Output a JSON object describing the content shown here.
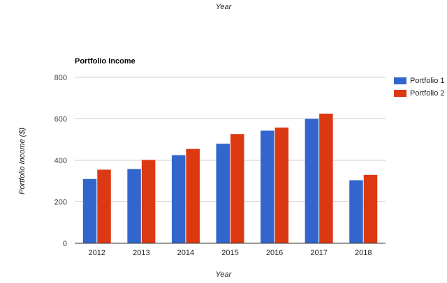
{
  "header": {
    "top_label": "Year"
  },
  "chart_data": {
    "type": "bar",
    "title": "Portfolio Income",
    "xlabel": "Year",
    "ylabel": "Portfolio Income ($)",
    "categories": [
      "2012",
      "2013",
      "2014",
      "2015",
      "2016",
      "2017",
      "2018"
    ],
    "series": [
      {
        "name": "Portfolio 1",
        "color": "#3366cc",
        "values": [
          310,
          358,
          425,
          480,
          543,
          600,
          304
        ]
      },
      {
        "name": "Portfolio 2",
        "color": "#dc3912",
        "values": [
          355,
          402,
          455,
          527,
          558,
          625,
          330
        ]
      }
    ],
    "ylim": [
      0,
      800
    ],
    "yticks": [
      0,
      200,
      400,
      600,
      800
    ],
    "grid": true,
    "legend_position": "right"
  }
}
